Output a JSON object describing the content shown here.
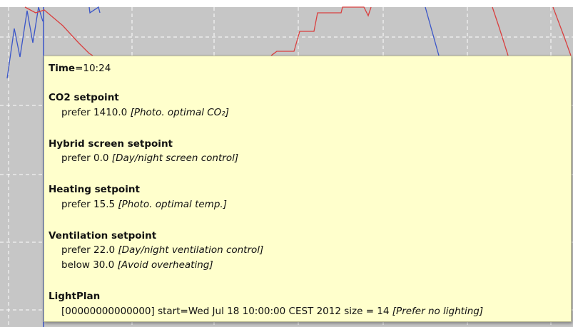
{
  "tooltip": {
    "time": {
      "label": "Time",
      "value": "=10:24"
    },
    "sections": [
      {
        "title": "CO2 setpoint",
        "lines": [
          {
            "text": "prefer 1410.0",
            "note": "[Photo. optimal CO₂]"
          }
        ]
      },
      {
        "title": "Hybrid screen setpoint",
        "lines": [
          {
            "text": "prefer 0.0",
            "note": "[Day/night screen control]"
          }
        ]
      },
      {
        "title": "Heating setpoint",
        "lines": [
          {
            "text": "prefer 15.5",
            "note": "[Photo. optimal temp.]"
          }
        ]
      },
      {
        "title": "Ventilation setpoint",
        "lines": [
          {
            "text": "prefer 22.0",
            "note": "[Day/night ventilation control]"
          },
          {
            "text": "below 30.0",
            "note": "[Avoid overheating]"
          }
        ]
      },
      {
        "title": "LightPlan",
        "lines": [
          {
            "text": "[00000000000000] start=Wed Jul 18 10:00:00 CEST 2012 size = 14",
            "note": "[Prefer no lighting]"
          }
        ]
      }
    ]
  }
}
